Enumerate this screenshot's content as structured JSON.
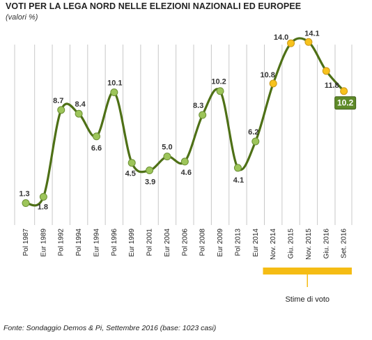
{
  "title": "VOTI PER LA LEGA NORD NELLE ELEZIONI NAZIONALI ED EUROPEE",
  "subtitle": "(valori %)",
  "source": "Fonte: Sondaggio Demos & Pi, Settembre 2016 (base: 1023 casi)",
  "estimate_label": "Stime di voto",
  "chart_data": {
    "type": "line",
    "title": "VOTI PER LA LEGA NORD NELLE ELEZIONI NAZIONALI ED EUROPEE",
    "subtitle": "(valori %)",
    "categories": [
      "Pol 1987",
      "Eur 1989",
      "Pol 1992",
      "Pol 1994",
      "Eur 1994",
      "Pol 1996",
      "Eur 1999",
      "Pol 2001",
      "Eur 2004",
      "Pol 2006",
      "Pol 2008",
      "Eur 2009",
      "Pol 2013",
      "Eur 2014",
      "Nov. 2014",
      "Giu. 2015",
      "Nov. 2015",
      "Giu. 2016",
      "Set. 2016"
    ],
    "series": [
      {
        "values": [
          1.3,
          1.8,
          8.7,
          8.4,
          6.6,
          10.1,
          4.5,
          3.9,
          5.0,
          4.6,
          8.3,
          10.2,
          4.1,
          6.2,
          10.8,
          14.0,
          14.1,
          11.8,
          10.2
        ]
      }
    ],
    "ylim": [
      0,
      15
    ],
    "grid": "vertical",
    "estimate_categories": [
      "Nov. 2014",
      "Giu. 2015",
      "Nov. 2015",
      "Giu. 2016",
      "Set. 2016"
    ],
    "highlight_last_label": "10.2",
    "colors": {
      "line": "#4e7016",
      "marker_actual": "#9dc55a",
      "marker_estimate": "#f7c21c",
      "estimate_band": "#f5bc14",
      "highlight_box": "#5e8a28",
      "grid": "#c8c8c8"
    }
  }
}
